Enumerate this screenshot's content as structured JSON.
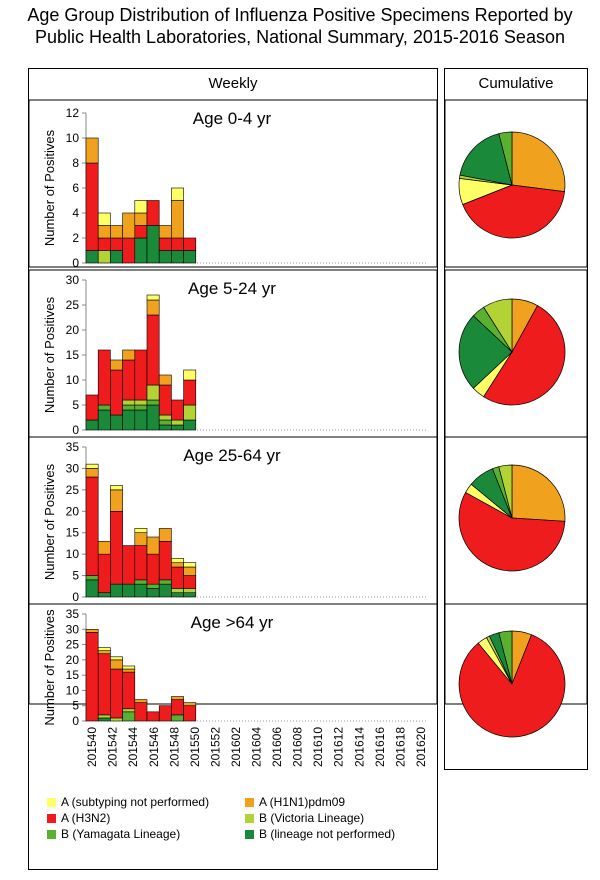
{
  "title_line1": "Age Group Distribution of Influenza Positive Specimens Reported by",
  "title_line2": "Public Health Laboratories, National Summary, 2015-2016 Season",
  "weekly_header": "Weekly",
  "cumulative_header": "Cumulative",
  "colors": {
    "a_unsubtyped": "#ffff66",
    "a_h1n1": "#f0a21e",
    "a_h3n2": "#ee1c1c",
    "b_victoria": "#b2d235",
    "b_yamagata": "#5ab030",
    "b_notperformed": "#1a8a3a"
  },
  "legend": [
    {
      "key": "a_unsubtyped",
      "label": "A (subtyping not performed)"
    },
    {
      "key": "a_h1n1",
      "label": "A (H1N1)pdm09"
    },
    {
      "key": "a_h3n2",
      "label": "A (H3N2)"
    },
    {
      "key": "b_victoria",
      "label": "B (Victoria Lineage)"
    },
    {
      "key": "b_yamagata",
      "label": "B (Yamagata Lineage)"
    },
    {
      "key": "b_notperformed",
      "label": "B (lineage not performed)"
    }
  ],
  "chart_data": {
    "type": "bar",
    "stacked": true,
    "ylabel": "Number of Positives",
    "x_tick_labels": [
      "201540",
      "201542",
      "201544",
      "201546",
      "201548",
      "201550",
      "201552",
      "201602",
      "201604",
      "201606",
      "201608",
      "201610",
      "201612",
      "201614",
      "201616",
      "201618",
      "201620"
    ],
    "weeks": [
      "201540",
      "201541",
      "201542",
      "201543",
      "201544",
      "201545",
      "201546",
      "201547",
      "201548"
    ],
    "series_order": [
      "b_notperformed",
      "b_yamagata",
      "b_victoria",
      "a_h3n2",
      "a_h1n1",
      "a_unsubtyped"
    ],
    "panels": [
      {
        "label": "Age 0-4 yr",
        "ylim": [
          0,
          12
        ],
        "yticks": [
          0,
          2,
          4,
          6,
          8,
          10,
          12
        ],
        "series": {
          "b_notperformed": [
            1,
            0,
            1,
            0,
            2,
            3,
            1,
            1,
            1
          ],
          "b_yamagata": [
            0,
            0,
            0,
            0,
            0,
            0,
            0,
            0,
            0
          ],
          "b_victoria": [
            0,
            1,
            0,
            0,
            0,
            0,
            0,
            0,
            0
          ],
          "a_h3n2": [
            7,
            1,
            1,
            2,
            1,
            2,
            1,
            1,
            1
          ],
          "a_h1n1": [
            2,
            1,
            1,
            2,
            1,
            0,
            1,
            3,
            0
          ],
          "a_unsubtyped": [
            0,
            1,
            0,
            0,
            1,
            0,
            0,
            1,
            0
          ]
        },
        "pie": [
          {
            "key": "a_h1n1",
            "value": 27
          },
          {
            "key": "a_h3n2",
            "value": 42
          },
          {
            "key": "a_unsubtyped",
            "value": 8
          },
          {
            "key": "b_victoria",
            "value": 1
          },
          {
            "key": "b_notperformed",
            "value": 18
          },
          {
            "key": "b_yamagata",
            "value": 4
          }
        ]
      },
      {
        "label": "Age 5-24 yr",
        "ylim": [
          0,
          30
        ],
        "yticks": [
          0,
          5,
          10,
          15,
          20,
          25,
          30
        ],
        "series": {
          "b_notperformed": [
            2,
            4,
            3,
            4,
            4,
            5,
            1,
            1,
            2
          ],
          "b_yamagata": [
            0,
            1,
            0,
            1,
            1,
            1,
            1,
            0,
            0
          ],
          "b_victoria": [
            0,
            0,
            0,
            1,
            1,
            3,
            1,
            1,
            3
          ],
          "a_h3n2": [
            5,
            11,
            9,
            8,
            10,
            14,
            6,
            4,
            5
          ],
          "a_h1n1": [
            0,
            0,
            2,
            2,
            0,
            3,
            2,
            0,
            0
          ],
          "a_unsubtyped": [
            0,
            0,
            0,
            0,
            0,
            1,
            0,
            0,
            2
          ]
        },
        "pie": [
          {
            "key": "a_h1n1",
            "value": 8
          },
          {
            "key": "a_h3n2",
            "value": 51
          },
          {
            "key": "a_unsubtyped",
            "value": 4
          },
          {
            "key": "b_notperformed",
            "value": 24
          },
          {
            "key": "b_yamagata",
            "value": 4
          },
          {
            "key": "b_victoria",
            "value": 9
          }
        ]
      },
      {
        "label": "Age 25-64 yr",
        "ylim": [
          0,
          35
        ],
        "yticks": [
          0,
          5,
          10,
          15,
          20,
          25,
          30,
          35
        ],
        "series": {
          "b_notperformed": [
            4,
            1,
            3,
            3,
            3,
            2,
            3,
            1,
            1
          ],
          "b_yamagata": [
            1,
            0,
            0,
            0,
            1,
            1,
            1,
            0,
            0
          ],
          "b_victoria": [
            0,
            0,
            0,
            0,
            0,
            0,
            0,
            1,
            1
          ],
          "a_h3n2": [
            23,
            9,
            17,
            9,
            8,
            7,
            9,
            5,
            3
          ],
          "a_h1n1": [
            2,
            3,
            5,
            0,
            3,
            4,
            3,
            1,
            2
          ],
          "a_unsubtyped": [
            1,
            0,
            1,
            0,
            1,
            0,
            0,
            1,
            1
          ]
        },
        "pie": [
          {
            "key": "a_h1n1",
            "value": 26
          },
          {
            "key": "a_h3n2",
            "value": 57
          },
          {
            "key": "a_unsubtyped",
            "value": 3
          },
          {
            "key": "b_notperformed",
            "value": 8
          },
          {
            "key": "b_yamagata",
            "value": 2
          },
          {
            "key": "b_victoria",
            "value": 4
          }
        ]
      },
      {
        "label": "Age >64 yr",
        "ylim": [
          0,
          35
        ],
        "yticks": [
          0,
          5,
          10,
          15,
          20,
          25,
          30,
          35
        ],
        "series": {
          "b_notperformed": [
            0,
            1,
            0,
            0,
            0,
            0,
            0,
            0,
            0
          ],
          "b_yamagata": [
            0,
            0,
            0,
            3,
            0,
            0,
            0,
            2,
            0
          ],
          "b_victoria": [
            0,
            1,
            1,
            1,
            0,
            0,
            0,
            0,
            0
          ],
          "a_h3n2": [
            29,
            20,
            16,
            12,
            6,
            3,
            5,
            5,
            5
          ],
          "a_h1n1": [
            1,
            1,
            3,
            1,
            1,
            0,
            0,
            1,
            1
          ],
          "a_unsubtyped": [
            0,
            1,
            1,
            1,
            0,
            0,
            0,
            0,
            0
          ]
        },
        "pie": [
          {
            "key": "a_h1n1",
            "value": 6
          },
          {
            "key": "a_h3n2",
            "value": 83
          },
          {
            "key": "a_unsubtyped",
            "value": 3
          },
          {
            "key": "b_victoria",
            "value": 1
          },
          {
            "key": "b_notperformed",
            "value": 3
          },
          {
            "key": "b_yamagata",
            "value": 4
          }
        ]
      }
    ]
  }
}
